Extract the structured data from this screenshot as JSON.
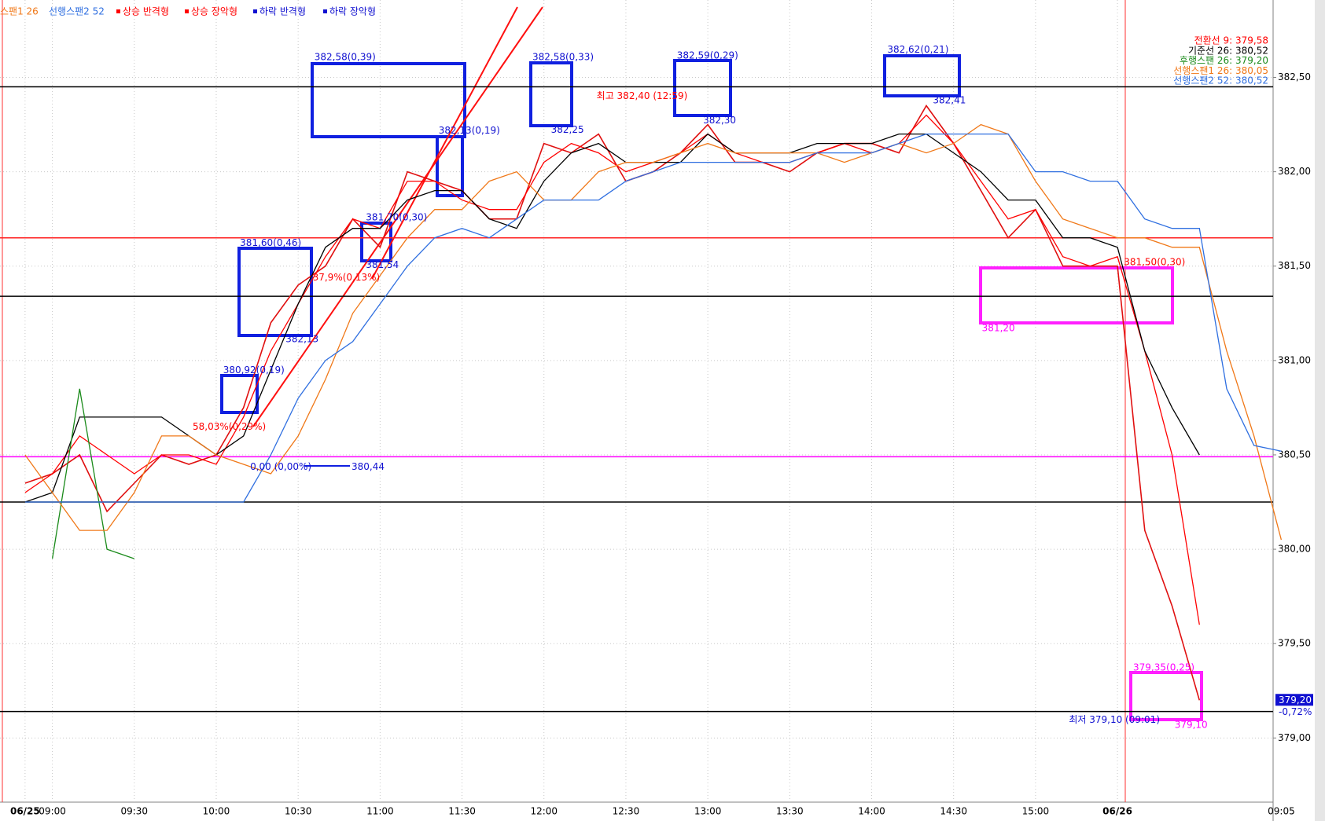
{
  "chart_data": {
    "type": "line",
    "categories": [
      "06/25",
      "09:00",
      null,
      null,
      "09:30",
      null,
      null,
      "10:00",
      null,
      null,
      "10:30",
      null,
      null,
      "11:00",
      null,
      null,
      "11:30",
      null,
      null,
      "12:00",
      null,
      null,
      "12:30",
      null,
      null,
      "13:00",
      null,
      null,
      "13:30",
      null,
      null,
      "14:00",
      null,
      null,
      "14:30",
      null,
      null,
      "15:00",
      null,
      null,
      "06/26",
      null,
      null,
      null,
      null,
      null,
      "09:05"
    ],
    "series": [
      {
        "color": "#e01010",
        "values": [
          380.35,
          380.4,
          380.5,
          380.2,
          380.35,
          380.5,
          380.45,
          380.5,
          380.75,
          381.2,
          381.4,
          381.5,
          381.75,
          381.6,
          382.0,
          381.95,
          381.9,
          381.75,
          381.75,
          382.15,
          382.1,
          382.2,
          381.95,
          382.0,
          382.1,
          382.25,
          382.05,
          382.05,
          382.0,
          382.1,
          382.15,
          382.15,
          382.1,
          382.35,
          382.15,
          381.9,
          381.65,
          381.8,
          381.5,
          381.5,
          381.5,
          380.1,
          379.7,
          379.2,
          null,
          null,
          null
        ]
      },
      {
        "name": "전환선 9: 379,58",
        "color": "#ff0000",
        "values": [
          380.3,
          380.4,
          380.6,
          380.5,
          380.4,
          380.5,
          380.5,
          380.45,
          380.7,
          381.05,
          381.3,
          381.55,
          381.75,
          381.7,
          381.95,
          381.95,
          381.85,
          381.8,
          381.8,
          382.05,
          382.15,
          382.1,
          382.0,
          382.05,
          382.1,
          382.2,
          382.1,
          382.05,
          382.05,
          382.1,
          382.15,
          382.1,
          382.15,
          382.3,
          382.15,
          381.95,
          381.75,
          381.8,
          381.55,
          381.5,
          381.55,
          381.05,
          380.5,
          379.6,
          null,
          null,
          null
        ]
      },
      {
        "name": "기준선 26: 380,52",
        "color": "#000000",
        "values": [
          380.25,
          380.3,
          380.7,
          380.7,
          380.7,
          380.7,
          380.6,
          380.5,
          380.6,
          380.95,
          381.3,
          381.6,
          381.7,
          381.7,
          381.85,
          381.9,
          381.9,
          381.75,
          381.7,
          381.95,
          382.1,
          382.15,
          382.05,
          382.05,
          382.05,
          382.2,
          382.1,
          382.1,
          382.1,
          382.15,
          382.15,
          382.15,
          382.2,
          382.2,
          382.1,
          382.0,
          381.85,
          381.85,
          381.65,
          381.65,
          381.6,
          381.05,
          380.75,
          380.5,
          null,
          null,
          null
        ]
      },
      {
        "name": "후행스팬 26: 379,20",
        "color": "#1a8a1a",
        "values": [
          null,
          379.95,
          380.85,
          380.0,
          379.95,
          null,
          null,
          null,
          null,
          null,
          null,
          null,
          null,
          null,
          null,
          null,
          null,
          null,
          null,
          null,
          null,
          null,
          null,
          null,
          null,
          null,
          null,
          null,
          null,
          null,
          null,
          null,
          null,
          null,
          null,
          null,
          null,
          null,
          null,
          null,
          null,
          null,
          null,
          null,
          null,
          null,
          null
        ]
      },
      {
        "name": "선행스팬1 26: 380,05",
        "color": "#f07818",
        "values": [
          380.5,
          380.3,
          380.1,
          380.1,
          380.3,
          380.6,
          380.6,
          380.5,
          380.45,
          380.4,
          380.6,
          380.9,
          381.25,
          381.45,
          381.65,
          381.8,
          381.8,
          381.95,
          382.0,
          381.85,
          381.85,
          382.0,
          382.05,
          382.05,
          382.1,
          382.15,
          382.1,
          382.1,
          382.1,
          382.1,
          382.05,
          382.1,
          382.15,
          382.1,
          382.15,
          382.25,
          382.2,
          381.95,
          381.75,
          381.7,
          381.65,
          381.65,
          381.6,
          381.6,
          381.05,
          380.6,
          380.05
        ]
      },
      {
        "name": "선행스팬2 52: 380,52",
        "color": "#2f6fe0",
        "values": [
          380.25,
          380.25,
          380.25,
          380.25,
          380.25,
          380.25,
          380.25,
          380.25,
          380.25,
          380.5,
          380.8,
          381.0,
          381.1,
          381.3,
          381.5,
          381.65,
          381.7,
          381.65,
          381.75,
          381.85,
          381.85,
          381.85,
          381.95,
          382.0,
          382.05,
          382.05,
          382.05,
          382.05,
          382.05,
          382.1,
          382.1,
          382.1,
          382.15,
          382.2,
          382.2,
          382.2,
          382.2,
          382.0,
          382.0,
          381.95,
          381.95,
          381.75,
          381.7,
          381.7,
          380.85,
          380.55,
          380.52
        ]
      }
    ],
    "ylim": [
      378.66,
      382.91
    ],
    "yticks": [
      {
        "value": 379.0,
        "label": "379,00"
      },
      {
        "value": 379.5,
        "label": "379,50"
      },
      {
        "value": 380.0,
        "label": "380,00"
      },
      {
        "value": 380.5,
        "label": "380,50"
      },
      {
        "value": 381.0,
        "label": "381,00"
      },
      {
        "value": 381.5,
        "label": "381,50"
      },
      {
        "value": 382.0,
        "label": "382,00"
      },
      {
        "value": 382.5,
        "label": "382,50"
      }
    ],
    "grid": true,
    "levels": [
      {
        "value": 382.45,
        "color": "#000000"
      },
      {
        "value": 381.65,
        "color": "#ff2020"
      },
      {
        "value": 381.34,
        "color": "#000000"
      },
      {
        "value": 380.49,
        "color": "#ff00ff"
      },
      {
        "value": 380.25,
        "color": "#000000"
      },
      {
        "value": 379.14,
        "color": "#000000"
      }
    ],
    "top_legend": [
      {
        "text": "스팬1 26",
        "color": "#f07818"
      },
      {
        "text": "선행스팬2 52",
        "color": "#2f6fe0"
      },
      {
        "text": "상승 반격형",
        "color": "#ff0000"
      },
      {
        "text": "상승 장악형",
        "color": "#ff0000"
      },
      {
        "text": "하락 반격형",
        "color": "#1010d0"
      },
      {
        "text": "하락 장악형",
        "color": "#1010d0"
      }
    ],
    "annotations": [
      {
        "text": "382,58(0,39)",
        "color": "#1010d0"
      },
      {
        "text": "382,58(0,33)",
        "color": "#1010d0"
      },
      {
        "text": "382,59(0,29)",
        "color": "#1010d0"
      },
      {
        "text": "382,62(0,21)",
        "color": "#1010d0"
      },
      {
        "text": "382,41",
        "color": "#1010d0"
      },
      {
        "text": "382,30",
        "color": "#1010d0"
      },
      {
        "text": "382,25",
        "color": "#1010d0"
      },
      {
        "text": "최고 382,40 (12:59)",
        "color": "#ff0000"
      },
      {
        "text": "382,13(0,19)",
        "color": "#1010d0"
      },
      {
        "text": "381,60(0,46)",
        "color": "#1010d0"
      },
      {
        "text": "382,13",
        "color": "#1010d0"
      },
      {
        "text": "381,70(0,30)",
        "color": "#1010d0"
      },
      {
        "text": "381,54",
        "color": "#1010d0"
      },
      {
        "text": "37,9%(0,13%)",
        "color": "#ff0000"
      },
      {
        "text": "380,92(0,19)",
        "color": "#1010d0"
      },
      {
        "text": "58,03%(0,29%)",
        "color": "#ff0000"
      },
      {
        "text": "0,00 (0,00%)",
        "color": "#1010d0"
      },
      {
        "text": "380,44",
        "color": "#1010d0"
      },
      {
        "text": "381,50(0,30)",
        "color": "#ff0000"
      },
      {
        "text": "381,20",
        "color": "#ff00ff"
      },
      {
        "text": "379,35(0,25)",
        "color": "#ff00ff"
      },
      {
        "text": "최저 379,10 (09:01)",
        "color": "#1010d0"
      },
      {
        "text": "379,10",
        "color": "#ff00ff"
      }
    ],
    "current_price": {
      "label": "379,20",
      "change": "-0,72%"
    }
  }
}
